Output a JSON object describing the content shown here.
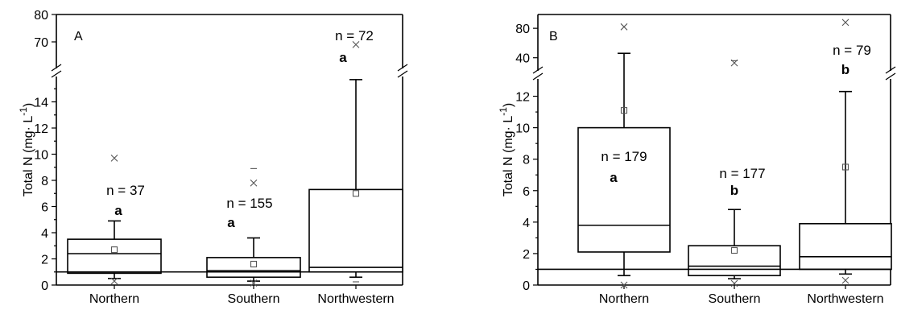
{
  "chart_data": [
    {
      "type": "box",
      "panel_label": "A",
      "ylabel_main": "Total N (mg· L",
      "ylabel_sup": "-1",
      "ylabel_close": ")",
      "categories": [
        "Northern",
        "Southern",
        "Northwestern"
      ],
      "broken_axis": {
        "lower_range": [
          0,
          16
        ],
        "upper_range": [
          60,
          80
        ],
        "lower_ticks": [
          0,
          2,
          4,
          6,
          8,
          10,
          12,
          14
        ],
        "upper_ticks": [
          70,
          80
        ]
      },
      "reference_line": 1,
      "boxes": [
        {
          "category": "Northern",
          "n_label": "n = 37",
          "letter": "a",
          "whisker_low": 0.5,
          "q1": 0.9,
          "median": 2.4,
          "q3": 3.5,
          "whisker_high": 4.9,
          "mean": 2.7,
          "outliers_x": [
            9.7,
            0.3
          ],
          "max_dash": null
        },
        {
          "category": "Southern",
          "n_label": "n = 155",
          "letter": "a",
          "whisker_low": 0.3,
          "q1": 0.6,
          "median": 1.1,
          "q3": 2.1,
          "whisker_high": 3.6,
          "mean": 1.6,
          "outliers_x": [
            7.8,
            0.15
          ],
          "max_dash": 8.9
        },
        {
          "category": "Northwestern",
          "n_label": "n = 72",
          "letter": "a",
          "whisker_low": 0.6,
          "q1": 1.0,
          "median": 1.35,
          "q3": 7.3,
          "whisker_high": 15.7,
          "mean": 7.0,
          "outliers_x": [
            69
          ],
          "min_dash": 0
        }
      ]
    },
    {
      "type": "box",
      "panel_label": "B",
      "ylabel_main": "Total N (mg· L",
      "ylabel_sup": "-1",
      "ylabel_close": ")",
      "categories": [
        "Northern",
        "Southern",
        "Northwestern"
      ],
      "broken_axis": {
        "lower_range": [
          0,
          13
        ],
        "upper_range": [
          20,
          90
        ],
        "lower_ticks": [
          0,
          2,
          4,
          6,
          8,
          10,
          12
        ],
        "upper_ticks": [
          40,
          80
        ]
      },
      "reference_line": 1,
      "boxes": [
        {
          "category": "Northern",
          "n_label": "n = 179",
          "letter": "a",
          "whisker_low": 0.6,
          "q1": 2.1,
          "median": 3.8,
          "q3": 10.0,
          "whisker_high": 46,
          "mean": 11.1,
          "outliers_x": [
            82,
            0
          ]
        },
        {
          "category": "Southern",
          "n_label": "n = 177",
          "letter": "b",
          "whisker_low": 0.4,
          "q1": 0.6,
          "median": 1.2,
          "q3": 2.5,
          "whisker_high": 4.8,
          "mean": 2.2,
          "outliers_x": [
            33,
            0.1
          ],
          "max_dash": 36
        },
        {
          "category": "Northwestern",
          "n_label": "n = 79",
          "letter": "b",
          "whisker_low": 0.7,
          "q1": 1.0,
          "median": 1.8,
          "q3": 3.9,
          "whisker_high": 12.3,
          "mean": 7.5,
          "outliers_x": [
            88,
            0.3
          ]
        }
      ]
    }
  ]
}
